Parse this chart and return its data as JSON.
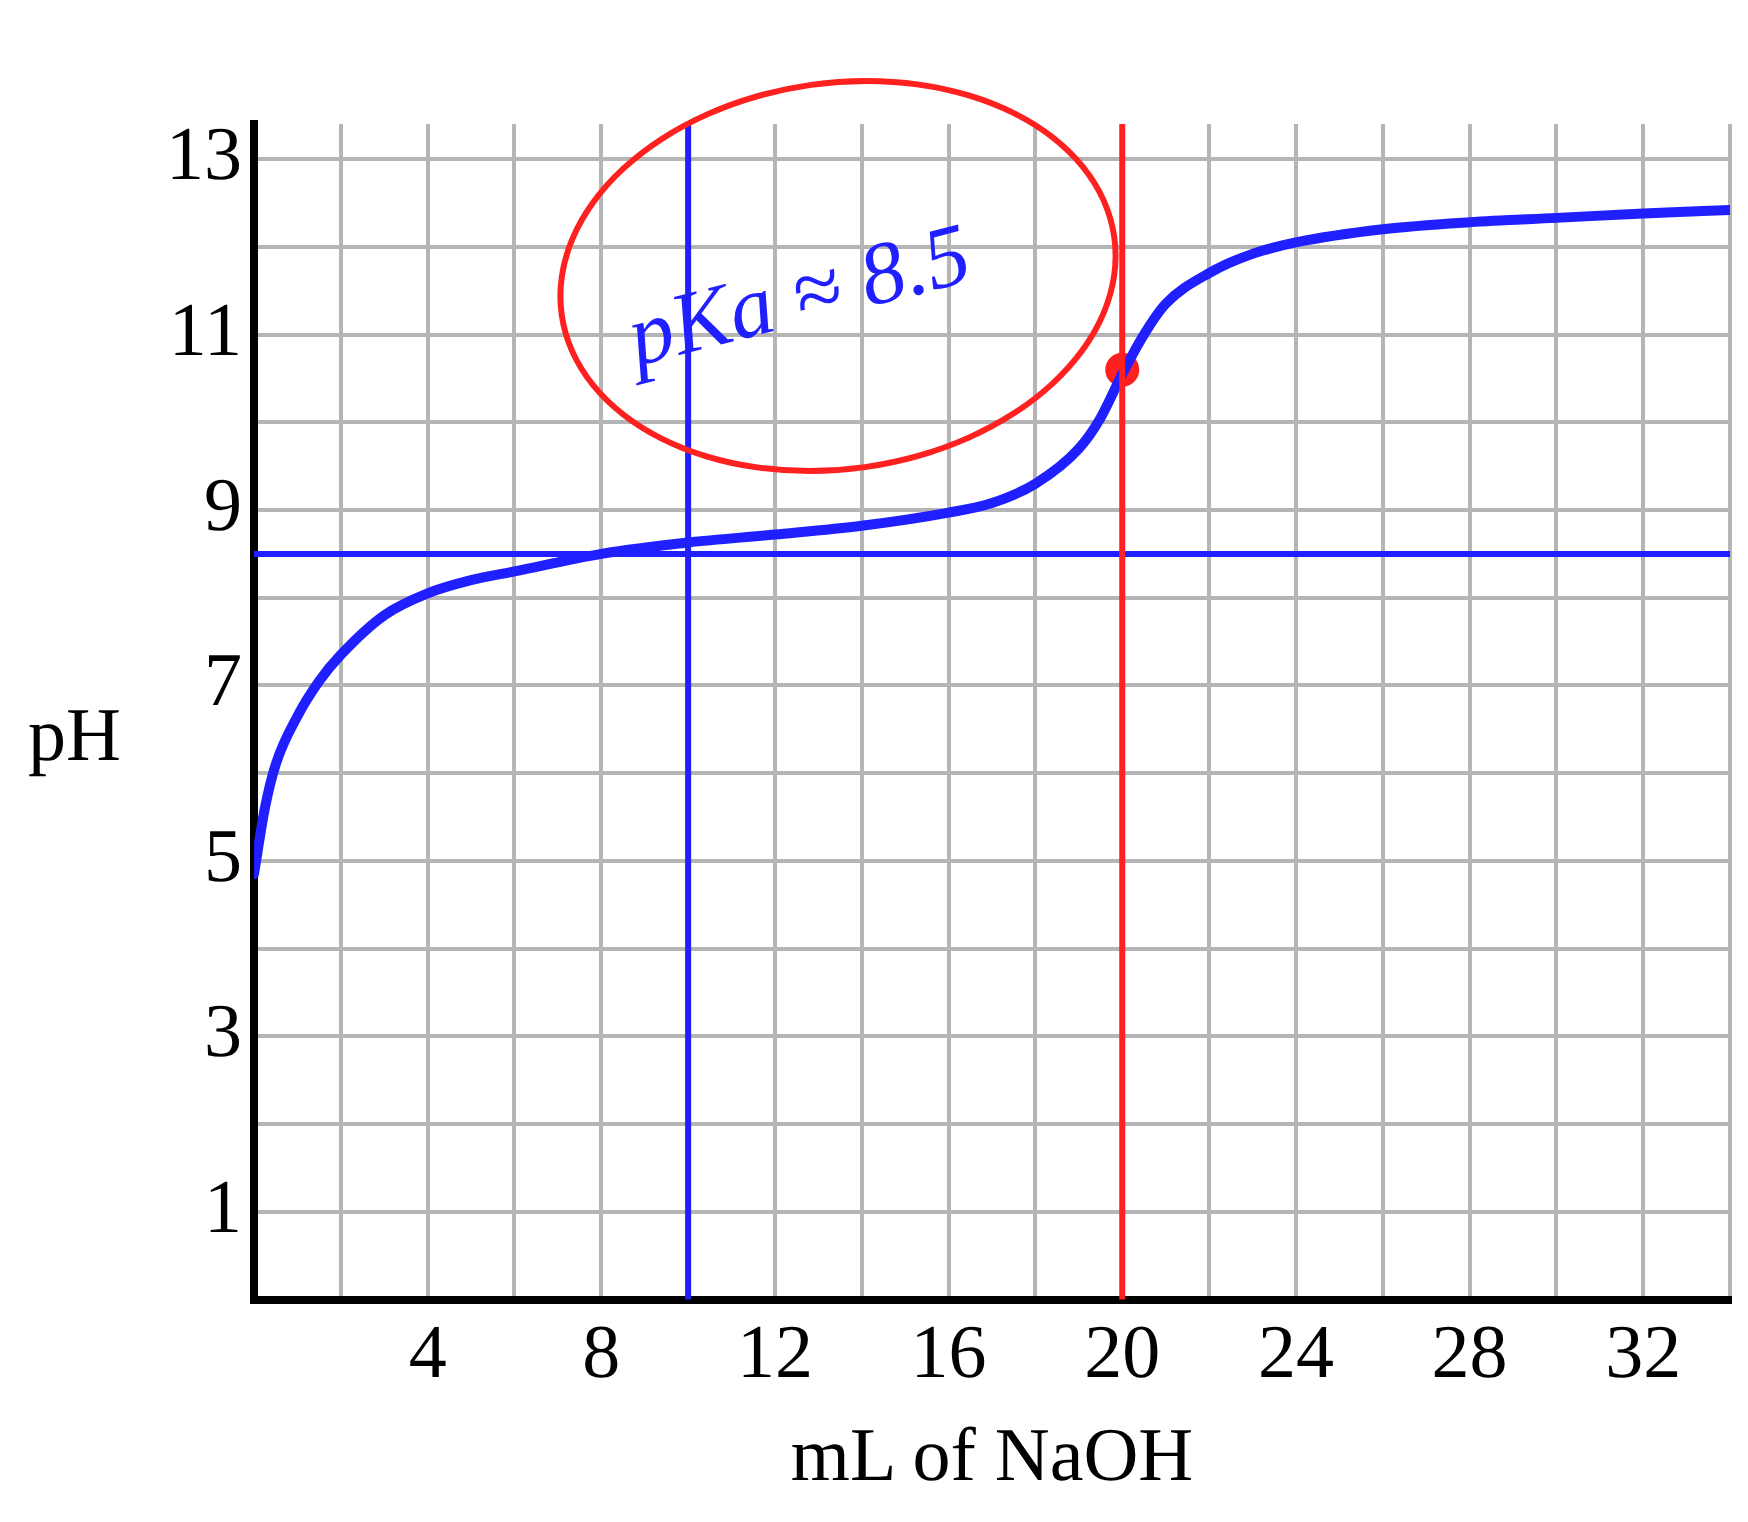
{
  "chart_data": {
    "type": "line",
    "xlabel": "mL of NaOH",
    "ylabel": "pH",
    "annotations": [
      "pKa ≈ 8.5"
    ],
    "xlim": [
      0,
      34
    ],
    "ylim": [
      0,
      13.4
    ],
    "xticks": [
      {
        "value": 2,
        "label": null
      },
      4,
      {
        "value": 6,
        "label": null
      },
      8,
      {
        "value": 10,
        "label": null
      },
      12,
      {
        "value": 14,
        "label": null
      },
      16,
      {
        "value": 18,
        "label": null
      },
      20,
      {
        "value": 22,
        "label": null
      },
      24,
      {
        "value": 26,
        "label": null
      },
      28,
      {
        "value": 30,
        "label": null
      },
      32,
      {
        "value": 34,
        "label": null
      }
    ],
    "yticks": [
      1,
      {
        "value": 2,
        "label": null
      },
      3,
      {
        "value": 4,
        "label": null
      },
      5,
      {
        "value": 6,
        "label": null
      },
      7,
      {
        "value": 8,
        "label": null
      },
      9,
      {
        "value": 10,
        "label": null
      },
      11,
      {
        "value": 12,
        "label": null
      },
      13
    ],
    "grid": true,
    "marker": "none",
    "line_style": "solid",
    "series": [
      {
        "type": "line",
        "color": "#1f1fff",
        "x": [
          0,
          0.25,
          0.5,
          1,
          1.5,
          2,
          3,
          4,
          5,
          6,
          8,
          10,
          12,
          14,
          16,
          17,
          18,
          19,
          19.5,
          20,
          20.5,
          21,
          22,
          23,
          24,
          26,
          28,
          30,
          32,
          34
        ],
        "values": [
          4.85,
          5.6,
          6.1,
          6.65,
          7.05,
          7.35,
          7.8,
          8.05,
          8.2,
          8.3,
          8.5,
          8.63,
          8.72,
          8.82,
          8.97,
          9.08,
          9.3,
          9.7,
          10.05,
          10.55,
          11.0,
          11.35,
          11.7,
          11.92,
          12.05,
          12.2,
          12.28,
          12.33,
          12.38,
          12.42
        ]
      },
      {
        "type": "scatter",
        "color": "#ff2020",
        "marker": "circle",
        "x": [
          20
        ],
        "values": [
          10.6
        ]
      }
    ],
    "ref_lines": [
      {
        "axis": "x",
        "value": 10,
        "color": "#1f1fff"
      },
      {
        "axis": "y",
        "value": 8.5,
        "color": "#1f1fff"
      },
      {
        "axis": "x",
        "value": 20,
        "color": "#ff2020"
      }
    ]
  }
}
